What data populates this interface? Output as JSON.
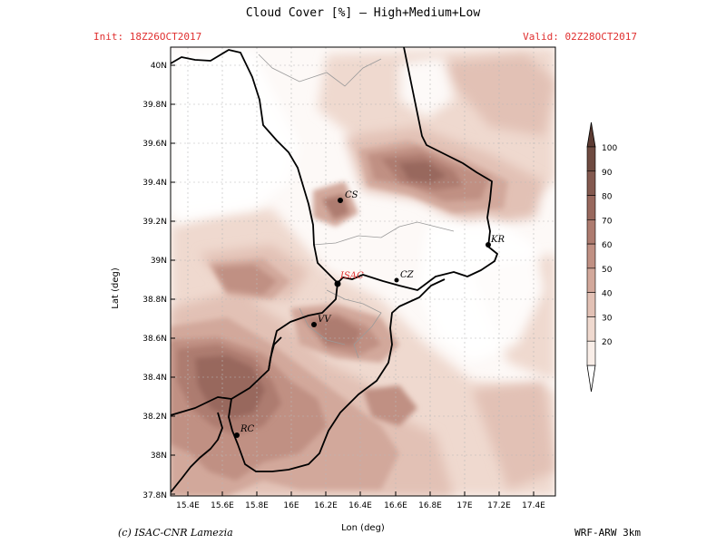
{
  "header": {
    "title": "Cloud Cover [%] — High+Medium+Low",
    "init": "Init: 18Z26OCT2017",
    "valid": "Valid: 02Z28OCT2017"
  },
  "footer": {
    "left": "(c) ISAC-CNR Lamezia",
    "right": "WRF-ARW 3km"
  },
  "axes": {
    "xlabel": "Lon (deg)",
    "ylabel": "Lat (deg)",
    "xticks": [
      "15.4E",
      "15.6E",
      "15.8E",
      "16E",
      "16.2E",
      "16.4E",
      "16.6E",
      "16.8E",
      "17E",
      "17.2E",
      "17.4E"
    ],
    "yticks": [
      "40N",
      "39.8N",
      "39.6N",
      "39.4N",
      "39.2N",
      "39N",
      "38.8N",
      "38.6N",
      "38.4N",
      "38.2N",
      "38N",
      "37.8N"
    ]
  },
  "colorbar": {
    "levels": [
      "100",
      "90",
      "80",
      "70",
      "60",
      "50",
      "40",
      "30",
      "20"
    ],
    "colors": [
      "#6e4a40",
      "#83594f",
      "#98685d",
      "#ad7b6f",
      "#c09083",
      "#d2a89b",
      "#e2c1b5",
      "#efd9cf",
      "#f9eee8",
      "#fffcf8"
    ]
  },
  "cities": [
    {
      "label": "CS",
      "lon": 16.27,
      "lat": 39.31
    },
    {
      "label": "KR",
      "lon": 17.12,
      "lat": 39.08
    },
    {
      "label": "ISAC",
      "lon": 16.24,
      "lat": 38.88,
      "color": "#e03030"
    },
    {
      "label": "CZ",
      "lon": 16.59,
      "lat": 38.9
    },
    {
      "label": "VV",
      "lon": 16.1,
      "lat": 38.67
    },
    {
      "label": "RC",
      "lon": 15.65,
      "lat": 38.11
    }
  ]
}
